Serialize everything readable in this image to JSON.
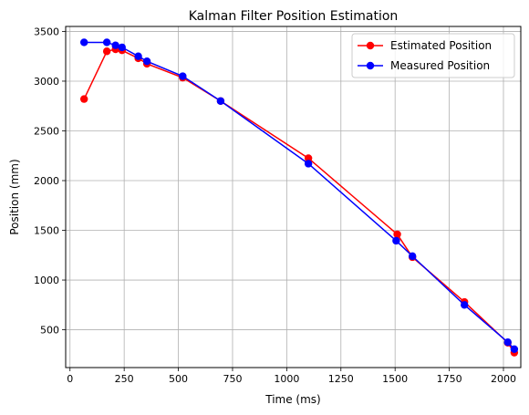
{
  "chart_data": {
    "type": "line",
    "title": "Kalman Filter Position Estimation",
    "xlabel": "Time (ms)",
    "ylabel": "Position (mm)",
    "xlim": [
      -20,
      2080
    ],
    "ylim": [
      120,
      3550
    ],
    "xticks": [
      0,
      250,
      500,
      750,
      1000,
      1250,
      1500,
      1750,
      2000
    ],
    "yticks": [
      500,
      1000,
      1500,
      2000,
      2500,
      3000,
      3500
    ],
    "grid": true,
    "legend_position": "top-right",
    "series": [
      {
        "name": "Estimated Position",
        "color": "#ff0000",
        "marker": "circle",
        "x": [
          65,
          170,
          210,
          240,
          315,
          355,
          520,
          695,
          1100,
          1510,
          1580,
          1820,
          2020,
          2050
        ],
        "y": [
          2820,
          3300,
          3320,
          3310,
          3230,
          3175,
          3035,
          2800,
          2225,
          1460,
          1230,
          780,
          370,
          270
        ]
      },
      {
        "name": "Measured Position",
        "color": "#0000ff",
        "marker": "circle",
        "x": [
          65,
          170,
          210,
          240,
          315,
          355,
          520,
          695,
          1100,
          1505,
          1580,
          1820,
          2020,
          2050
        ],
        "y": [
          3390,
          3390,
          3360,
          3340,
          3250,
          3200,
          3050,
          2800,
          2170,
          1395,
          1240,
          750,
          375,
          305
        ]
      }
    ]
  }
}
